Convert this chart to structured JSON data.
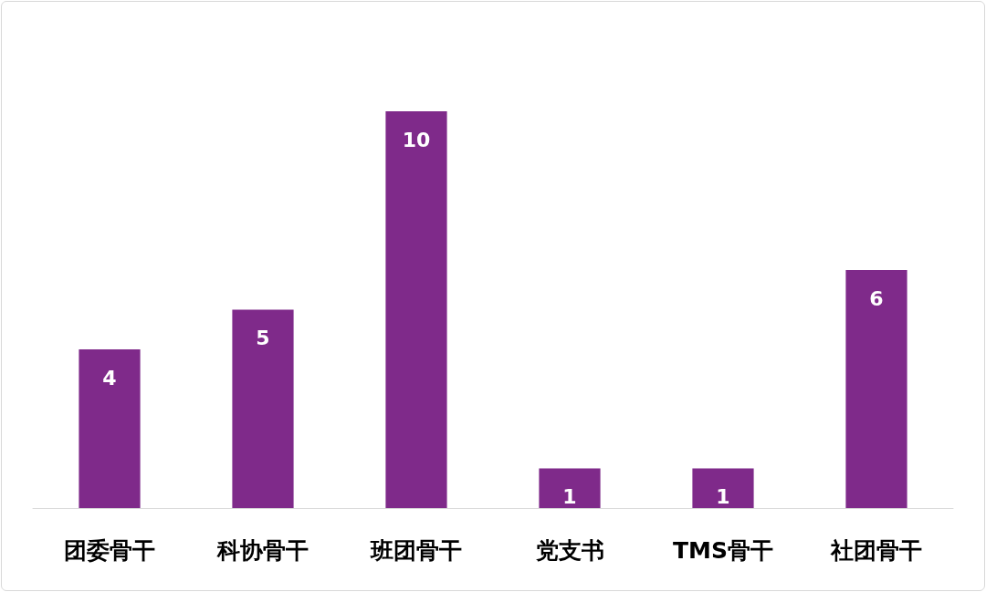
{
  "chart_data": {
    "type": "bar",
    "categories": [
      "团委骨干",
      "科协骨干",
      "班团骨干",
      "党支书",
      "TMS骨干",
      "社团骨干"
    ],
    "values": [
      4,
      5,
      10,
      1,
      1,
      6
    ],
    "color": "#7f2a8a",
    "data_labels": true
  }
}
